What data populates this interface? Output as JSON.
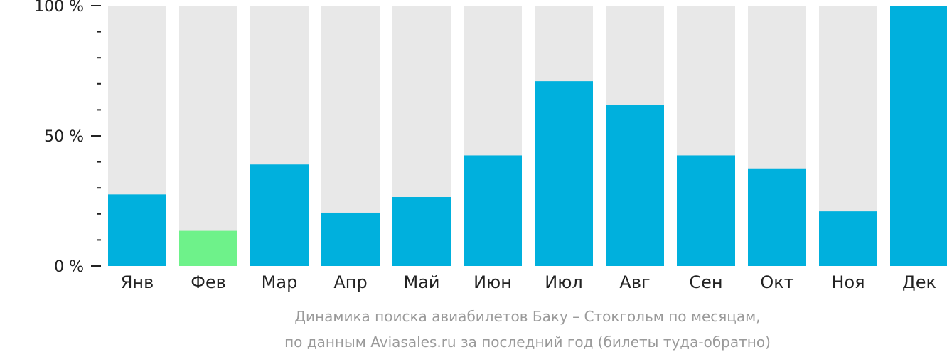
{
  "chart_data": {
    "type": "bar",
    "categories": [
      "Янв",
      "Фев",
      "Мар",
      "Апр",
      "Май",
      "Июн",
      "Июл",
      "Авг",
      "Сен",
      "Окт",
      "Ноя",
      "Дек"
    ],
    "values": [
      27.5,
      13.5,
      39,
      20.5,
      26.5,
      42.5,
      71,
      62,
      42.5,
      37.5,
      21,
      100
    ],
    "highlight_index": 1,
    "ylim": [
      0,
      100
    ],
    "yticks": [
      {
        "value": 100,
        "label": "100 %"
      },
      {
        "value": 50,
        "label": "50 %"
      },
      {
        "value": 0,
        "label": "0 %"
      }
    ],
    "minor_tick_step": 10,
    "caption_lines": [
      "Динамика поиска авиабилетов Баку – Стокгольм по месяцам,",
      "по данным Aviasales.ru за последний год (билеты туда-обратно)"
    ],
    "colors": {
      "bar": "#00b0dd",
      "highlight": "#6ef28a",
      "background_bar": "#e8e8e8",
      "axis": "#222222",
      "caption": "#9a9a9a"
    }
  }
}
